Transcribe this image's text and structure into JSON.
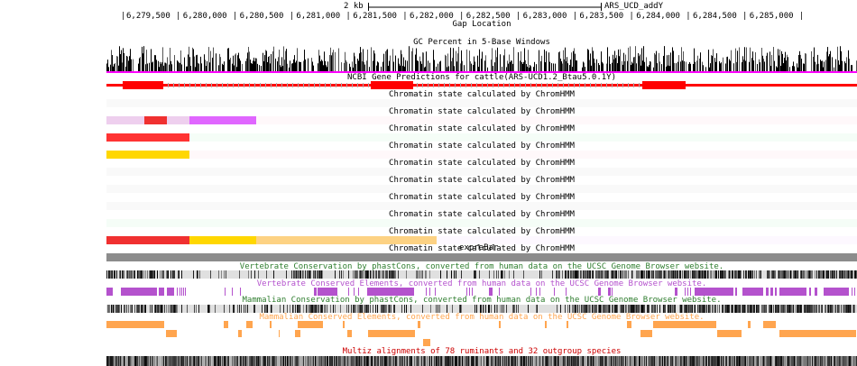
{
  "browser": {
    "scale_label": "2 kb",
    "assembly_label": "ARS_UCD_addY",
    "ruler_ticks": [
      "6,279,500",
      "6,280,000",
      "6,280,500",
      "6,281,000",
      "6,281,500",
      "6,282,000",
      "6,282,500",
      "6,283,000",
      "6,283,500",
      "6,284,000",
      "6,284,500",
      "6,285,000"
    ]
  },
  "tracks": {
    "gap": {
      "label": "Gap Location"
    },
    "gc": {
      "label": "GC Percent in 5-Base Windows",
      "bar_color": "#000000",
      "baseline_color": "#ff00ff"
    },
    "gene": {
      "label": "NCBI Gene Predictions for cattle(ARS-UCD1.2_Btau5.0.1Y)",
      "color": "#ff0000"
    },
    "chromatin": {
      "label": "Chromatin state calculated by ChromHMM",
      "rows": [
        {
          "background": "#f9f9f9",
          "segments": []
        },
        {
          "background": "#fff8fa",
          "segments": [
            {
              "start": 0.0,
              "end": 0.05,
              "color": "#eecfee"
            },
            {
              "start": 0.05,
              "end": 0.08,
              "color": "#f03030"
            },
            {
              "start": 0.08,
              "end": 0.11,
              "color": "#eecfee"
            },
            {
              "start": 0.11,
              "end": 0.2,
              "color": "#e066ff"
            }
          ]
        },
        {
          "background": "#f5fdf7",
          "segments": [
            {
              "start": 0.0,
              "end": 0.11,
              "color": "#ff3333"
            }
          ]
        },
        {
          "background": "#fff8fa",
          "segments": [
            {
              "start": 0.0,
              "end": 0.11,
              "color": "#ffd700"
            }
          ]
        },
        {
          "background": "#f9f9f9",
          "segments": []
        },
        {
          "background": "#f9f9f9",
          "segments": []
        },
        {
          "background": "#f9f9f9",
          "segments": []
        },
        {
          "background": "#f5fdf7",
          "segments": []
        },
        {
          "background": "#fdf8ff",
          "segments": [
            {
              "start": 0.0,
              "end": 0.11,
              "color": "#f03030"
            },
            {
              "start": 0.11,
              "end": 0.2,
              "color": "#ffd700"
            },
            {
              "start": 0.2,
              "end": 0.44,
              "color": "#fdd283"
            }
          ]
        },
        {
          "background": "#f9f9f9",
          "segments": []
        }
      ]
    },
    "exprebar": {
      "label": "expreBar",
      "color": "#8c8c8c"
    },
    "vert_cons": {
      "label": "Vertebrate Conservation by phastCons, converted from human data on the UCSC Genome Browser website.",
      "color": "#2e7d2e"
    },
    "vert_elem": {
      "label": "Vertebrate Conserved Elements, converted from human data on the UCSC Genome Browser website.",
      "color": "#b452cd"
    },
    "mamm_cons": {
      "label": "Mammalian Conservation by phastCons, converted from human data on the UCSC Genome Browser website.",
      "color": "#2e7d2e"
    },
    "mamm_elem": {
      "label": "Mammalian Conserved Elements, converted from human data on the UCSC Genome Browser website.",
      "color": "#ffa54f"
    },
    "multiz": {
      "label": "Multiz alignments of 78 ruminants and 32 outgroup species",
      "color": "#cc0000"
    }
  }
}
